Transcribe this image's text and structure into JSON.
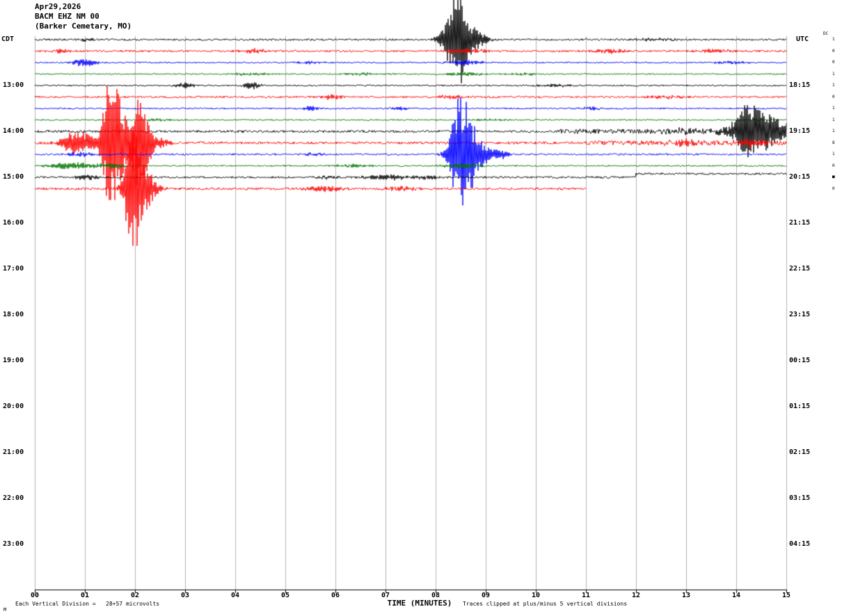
{
  "header": {
    "date": "Apr29,2026",
    "station": "BACM EHZ NM 00",
    "location": "(Barker Cemetary, MO)",
    "left_tz": "CDT",
    "right_tz": "UTC",
    "dc_label": "DC"
  },
  "footer": {
    "division_note": "Each Vertical Division =   28+57 microvolts",
    "xaxis_title": "TIME (MINUTES)",
    "clip_note": "Traces clipped at plus/minus 5 vertical divisions",
    "corner_mark": "M"
  },
  "axes": {
    "left_times": [
      "13:00",
      "14:00",
      "15:00",
      "16:00",
      "17:00",
      "18:00",
      "19:00",
      "20:00",
      "21:00",
      "22:00",
      "23:00"
    ],
    "right_times": [
      "18:15",
      "19:15",
      "20:15",
      "21:15",
      "22:15",
      "23:15",
      "00:15",
      "01:15",
      "02:15",
      "03:15",
      "04:15"
    ],
    "x_ticks": [
      "00",
      "01",
      "02",
      "03",
      "04",
      "05",
      "06",
      "07",
      "08",
      "09",
      "10",
      "11",
      "12",
      "13",
      "14",
      "15"
    ]
  },
  "colors": {
    "black": "#000000",
    "red": "#ff0000",
    "blue": "#0000ff",
    "green": "#007700",
    "grid": "#b4b4b4",
    "bg": "#ffffff"
  },
  "chart_data": {
    "type": "line",
    "subtype": "helicorder-seismogram",
    "title": "BACM EHZ NM 00 (Barker Cemetary, MO) Apr29,2026",
    "xlabel": "TIME (MINUTES)",
    "x_range": [
      0,
      15
    ],
    "minutes_per_row": 15,
    "clip_divisions": 5,
    "grid": "vertical-minute-lines",
    "dc_values": [
      "1",
      "0",
      "0",
      "1",
      "1",
      "0",
      "1",
      "1",
      "1",
      "8",
      "1",
      "0",
      "■",
      "0"
    ],
    "rows": [
      {
        "color": "black",
        "noise": 1.3,
        "events": [
          {
            "t": 1.05,
            "amp": 3,
            "sigma": 0.08
          },
          {
            "t": 8.2,
            "amp": 8,
            "sigma": 0.1
          },
          {
            "t": 8.42,
            "amp": 55,
            "sigma": 0.1
          },
          {
            "t": 8.55,
            "amp": 30,
            "sigma": 0.25
          },
          {
            "t": 12.4,
            "amp": 2,
            "sigma": 0.3
          }
        ]
      },
      {
        "color": "red",
        "noise": 1.4,
        "events": [
          {
            "t": 0.5,
            "amp": 2.5,
            "sigma": 0.15
          },
          {
            "t": 4.4,
            "amp": 3,
            "sigma": 0.2
          },
          {
            "t": 8.6,
            "amp": 3.5,
            "sigma": 0.3
          },
          {
            "t": 11.5,
            "amp": 3,
            "sigma": 0.25
          },
          {
            "t": 13.6,
            "amp": 2.5,
            "sigma": 0.3
          }
        ]
      },
      {
        "color": "blue",
        "noise": 1.1,
        "events": [
          {
            "t": 1.0,
            "amp": 5,
            "sigma": 0.2
          },
          {
            "t": 5.5,
            "amp": 2,
            "sigma": 0.2
          },
          {
            "t": 8.6,
            "amp": 3.5,
            "sigma": 0.25
          },
          {
            "t": 13.9,
            "amp": 2.5,
            "sigma": 0.2
          }
        ]
      },
      {
        "color": "green",
        "noise": 1.0,
        "events": [
          {
            "t": 4.3,
            "amp": 2,
            "sigma": 0.3
          },
          {
            "t": 6.5,
            "amp": 2,
            "sigma": 0.3
          },
          {
            "t": 8.6,
            "amp": 2.5,
            "sigma": 0.3
          },
          {
            "t": 9.8,
            "amp": 2,
            "sigma": 0.25
          }
        ]
      },
      {
        "color": "black",
        "noise": 1.1,
        "events": [
          {
            "t": 3.0,
            "amp": 3.5,
            "sigma": 0.15
          },
          {
            "t": 4.35,
            "amp": 5.5,
            "sigma": 0.12
          },
          {
            "t": 10.4,
            "amp": 2,
            "sigma": 0.3
          }
        ]
      },
      {
        "color": "red",
        "noise": 1.4,
        "events": [
          {
            "t": 5.9,
            "amp": 3,
            "sigma": 0.15
          },
          {
            "t": 8.3,
            "amp": 2.5,
            "sigma": 0.2
          },
          {
            "t": 12.6,
            "amp": 2,
            "sigma": 0.3
          }
        ]
      },
      {
        "color": "blue",
        "noise": 1.1,
        "events": [
          {
            "t": 5.5,
            "amp": 3.5,
            "sigma": 0.12
          },
          {
            "t": 7.3,
            "amp": 3,
            "sigma": 0.15
          },
          {
            "t": 11.1,
            "amp": 2,
            "sigma": 0.2
          }
        ]
      },
      {
        "color": "green",
        "noise": 1.0,
        "events": [
          {
            "t": 2.5,
            "amp": 1.5,
            "sigma": 0.3
          },
          {
            "t": 9.0,
            "amp": 1.5,
            "sigma": 0.3
          }
        ]
      },
      {
        "color": "black",
        "noise": 1.8,
        "extra_noise": [
          {
            "from": 10.5,
            "to": 15,
            "amp": 1.5
          }
        ],
        "events": [
          {
            "t": 12.9,
            "amp": 3,
            "sigma": 0.3
          },
          {
            "t": 13.9,
            "amp": 6,
            "sigma": 0.2
          },
          {
            "t": 14.25,
            "amp": 32,
            "sigma": 0.18
          },
          {
            "t": 14.55,
            "amp": 22,
            "sigma": 0.25
          },
          {
            "t": 14.9,
            "amp": 8,
            "sigma": 0.2
          }
        ]
      },
      {
        "color": "red",
        "noise": 1.8,
        "extra_noise": [
          {
            "from": 11,
            "to": 15,
            "amp": 1.5
          }
        ],
        "events": [
          {
            "t": 0.75,
            "amp": 16,
            "sigma": 0.18
          },
          {
            "t": 1.05,
            "amp": 10,
            "sigma": 0.1
          },
          {
            "t": 1.5,
            "amp": 75,
            "sigma": 0.12
          },
          {
            "t": 1.68,
            "amp": 45,
            "sigma": 0.18
          },
          {
            "t": 2.1,
            "amp": 60,
            "sigma": 0.12
          },
          {
            "t": 2.35,
            "amp": 10,
            "sigma": 0.2
          },
          {
            "t": 13.0,
            "amp": 3,
            "sigma": 0.3
          },
          {
            "t": 14.3,
            "amp": 5,
            "sigma": 0.2
          }
        ]
      },
      {
        "color": "blue",
        "noise": 1.3,
        "events": [
          {
            "t": 0.9,
            "amp": 3,
            "sigma": 0.2
          },
          {
            "t": 5.6,
            "amp": 2,
            "sigma": 0.2
          },
          {
            "t": 8.5,
            "amp": 70,
            "sigma": 0.15
          },
          {
            "t": 8.72,
            "amp": 30,
            "sigma": 0.22
          },
          {
            "t": 9.3,
            "amp": 8,
            "sigma": 0.1
          }
        ]
      },
      {
        "color": "green",
        "noise": 1.1,
        "events": [
          {
            "t": 0.7,
            "amp": 5,
            "sigma": 0.35
          },
          {
            "t": 1.6,
            "amp": 3,
            "sigma": 0.3
          },
          {
            "t": 6.3,
            "amp": 2,
            "sigma": 0.3
          },
          {
            "t": 8.5,
            "amp": 3,
            "sigma": 0.3
          }
        ]
      },
      {
        "color": "black",
        "noise": 1.4,
        "step": {
          "from": 12,
          "dy": -5
        },
        "events": [
          {
            "t": 1.0,
            "amp": 3,
            "sigma": 0.2
          },
          {
            "t": 5.8,
            "amp": 2,
            "sigma": 0.2
          },
          {
            "t": 7.0,
            "amp": 4,
            "sigma": 0.35
          },
          {
            "t": 7.9,
            "amp": 3,
            "sigma": 0.15
          }
        ]
      },
      {
        "color": "red",
        "noise": 1.7,
        "end": 11,
        "events": [
          {
            "t": 1.95,
            "amp": 80,
            "sigma": 0.1
          },
          {
            "t": 2.12,
            "amp": 35,
            "sigma": 0.2
          },
          {
            "t": 5.8,
            "amp": 3.5,
            "sigma": 0.3
          },
          {
            "t": 7.3,
            "amp": 2.5,
            "sigma": 0.25
          }
        ]
      }
    ]
  }
}
